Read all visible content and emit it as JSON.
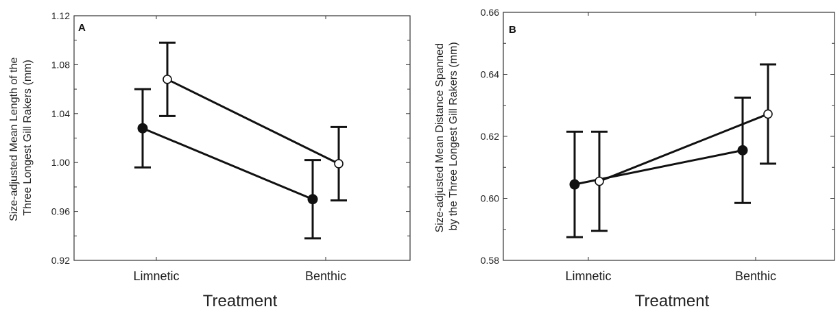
{
  "chart_data": [
    {
      "type": "line",
      "panel_label": "A",
      "xlabel": "Treatment",
      "ylabel_lines": [
        "Size-adjusted Mean Length of the",
        "Three Longest Gill Rakers (mm)"
      ],
      "categories": [
        "Limnetic",
        "Benthic"
      ],
      "ylim": [
        0.92,
        1.12
      ],
      "yticks": [
        "0.92",
        "0.96",
        "1.00",
        "1.04",
        "1.08",
        "1.12"
      ],
      "grid": false,
      "series": [
        {
          "marker": "filled",
          "values": [
            1.028,
            0.97
          ],
          "errors": [
            0.032,
            0.032
          ]
        },
        {
          "marker": "open",
          "values": [
            1.068,
            0.999
          ],
          "errors": [
            0.03,
            0.03
          ]
        }
      ]
    },
    {
      "type": "line",
      "panel_label": "B",
      "xlabel": "Treatment",
      "ylabel_lines": [
        "Size-adjusted Mean Distance Spanned",
        "by the Three Longest Gill Rakers (mm)"
      ],
      "categories": [
        "Limnetic",
        "Benthic"
      ],
      "ylim": [
        0.58,
        0.66
      ],
      "yticks": [
        "0.58",
        "0.60",
        "0.62",
        "0.64",
        "0.66"
      ],
      "grid": false,
      "series": [
        {
          "marker": "filled",
          "values": [
            0.6045,
            0.6155
          ],
          "errors": [
            0.017,
            0.017
          ]
        },
        {
          "marker": "open",
          "values": [
            0.6055,
            0.6272
          ],
          "errors": [
            0.016,
            0.016
          ]
        }
      ]
    }
  ]
}
